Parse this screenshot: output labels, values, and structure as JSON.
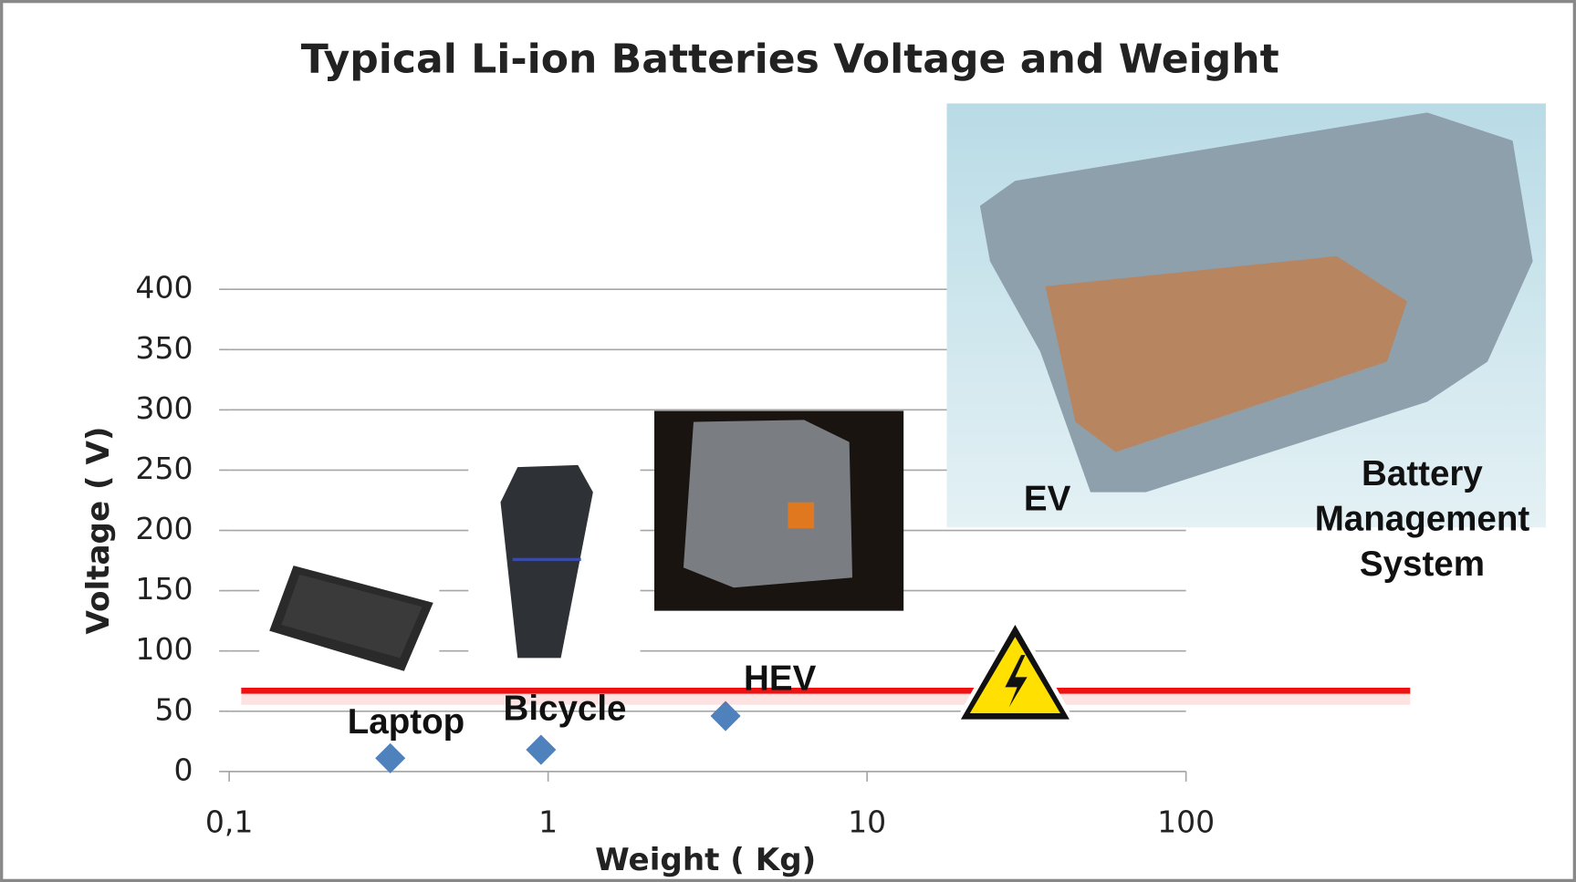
{
  "chart_data": {
    "type": "scatter",
    "title": "Typical Li-ion Batteries Voltage and Weight",
    "x_label": "Weight ( Kg)",
    "y_label": "Voltage ( V)",
    "x": [
      0.32,
      0.95,
      3.6
    ],
    "values": [
      11,
      18,
      46
    ],
    "color": "#4f81bd",
    "point_labels": [
      "Laptop",
      "Bicycle",
      "HEV"
    ],
    "annotations": [
      "EV",
      "Battery Management System"
    ],
    "xlim": [
      0.1,
      100
    ],
    "xscale": "log",
    "xticks": [
      {
        "value": 0.1,
        "label": "0,1"
      },
      1,
      10,
      100
    ],
    "ylim": [
      0,
      400
    ],
    "yticks": [
      0,
      50,
      100,
      150,
      200,
      250,
      300,
      350,
      400
    ],
    "grid": true,
    "reference_line": {
      "value": 67,
      "color": "#ee1111"
    }
  }
}
